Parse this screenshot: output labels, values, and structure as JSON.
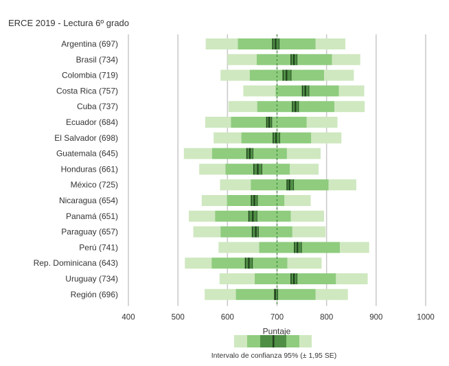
{
  "chart_data": {
    "type": "bar",
    "title": "ERCE 2019 - Lectura 6º grado",
    "xlabel": "Puntaje",
    "xlim": [
      400,
      1000
    ],
    "xticks": [
      400,
      500,
      600,
      700,
      800,
      900,
      1000
    ],
    "reference_line": 700,
    "grid": "vertical lines at ticks",
    "legend": {
      "placement": "bottom-center",
      "caption": "Intervalo de confianza 95% (± 1,95 SE)"
    },
    "colors": {
      "light": "#cfe8c0",
      "mid": "#8fcc7e",
      "dark": "#4f8f45",
      "darkest": "#1f3f1c",
      "grid": "#c8c8c8",
      "reference": "#3e8a3a"
    },
    "series_fields": [
      "p5",
      "p25",
      "mean_ci_low",
      "mean",
      "mean_ci_high",
      "p75",
      "p95"
    ],
    "rows": [
      {
        "label": "Argentina (697)",
        "p5": 556,
        "p25": 621,
        "mean_ci_low": 691,
        "mean": 697,
        "mean_ci_high": 705,
        "p75": 778,
        "p95": 838
      },
      {
        "label": "Brasil (734)",
        "p5": 600,
        "p25": 659,
        "mean_ci_low": 728,
        "mean": 734,
        "mean_ci_high": 741,
        "p75": 811,
        "p95": 868
      },
      {
        "label": "Colombia (719)",
        "p5": 586,
        "p25": 645,
        "mean_ci_low": 712,
        "mean": 719,
        "mean_ci_high": 729,
        "p75": 795,
        "p95": 855
      },
      {
        "label": "Costa Rica (757)",
        "p5": 632,
        "p25": 697,
        "mean_ci_low": 751,
        "mean": 757,
        "mean_ci_high": 765,
        "p75": 825,
        "p95": 876
      },
      {
        "label": "Cuba (737)",
        "p5": 602,
        "p25": 660,
        "mean_ci_low": 731,
        "mean": 737,
        "mean_ci_high": 744,
        "p75": 816,
        "p95": 877
      },
      {
        "label": "Ecuador (684)",
        "p5": 555,
        "p25": 607,
        "mean_ci_low": 679,
        "mean": 684,
        "mean_ci_high": 690,
        "p75": 760,
        "p95": 822
      },
      {
        "label": "El Salvador (698)",
        "p5": 572,
        "p25": 628,
        "mean_ci_low": 692,
        "mean": 698,
        "mean_ci_high": 706,
        "p75": 769,
        "p95": 830
      },
      {
        "label": "Guatemala (645)",
        "p5": 512,
        "p25": 569,
        "mean_ci_low": 639,
        "mean": 645,
        "mean_ci_high": 652,
        "p75": 720,
        "p95": 788
      },
      {
        "label": "Honduras (661)",
        "p5": 543,
        "p25": 596,
        "mean_ci_low": 653,
        "mean": 661,
        "mean_ci_high": 670,
        "p75": 726,
        "p95": 784
      },
      {
        "label": "México (725)",
        "p5": 585,
        "p25": 647,
        "mean_ci_low": 720,
        "mean": 725,
        "mean_ci_high": 734,
        "p75": 804,
        "p95": 860
      },
      {
        "label": "Nicaragua (654)",
        "p5": 548,
        "p25": 599,
        "mean_ci_low": 648,
        "mean": 654,
        "mean_ci_high": 661,
        "p75": 715,
        "p95": 768
      },
      {
        "label": "Panamá (651)",
        "p5": 522,
        "p25": 575,
        "mean_ci_low": 643,
        "mean": 651,
        "mean_ci_high": 660,
        "p75": 728,
        "p95": 795
      },
      {
        "label": "Paraguay (657)",
        "p5": 531,
        "p25": 586,
        "mean_ci_low": 650,
        "mean": 657,
        "mean_ci_high": 663,
        "p75": 731,
        "p95": 798
      },
      {
        "label": "Perú (741)",
        "p5": 582,
        "p25": 664,
        "mean_ci_low": 735,
        "mean": 741,
        "mean_ci_high": 750,
        "p75": 827,
        "p95": 886
      },
      {
        "label": "Rep. Dominicana (643)",
        "p5": 514,
        "p25": 568,
        "mean_ci_low": 636,
        "mean": 643,
        "mean_ci_high": 651,
        "p75": 721,
        "p95": 790
      },
      {
        "label": "Uruguay (734)",
        "p5": 584,
        "p25": 655,
        "mean_ci_low": 728,
        "mean": 734,
        "mean_ci_high": 741,
        "p75": 819,
        "p95": 883
      },
      {
        "label": "Región (696)",
        "p5": 554,
        "p25": 617,
        "mean_ci_low": 695,
        "mean": 696,
        "mean_ci_high": 702,
        "p75": 778,
        "p95": 843
      }
    ]
  }
}
